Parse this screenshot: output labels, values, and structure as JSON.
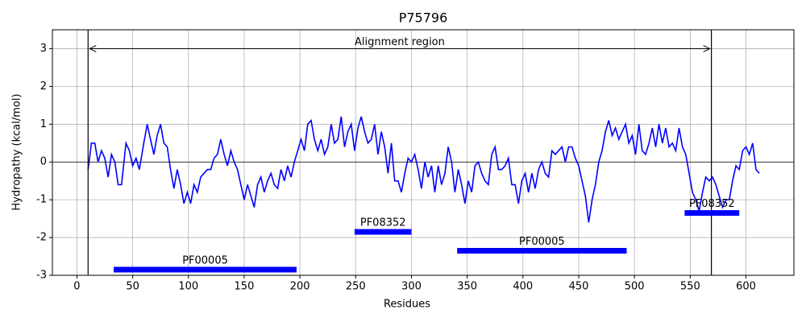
{
  "chart_data": {
    "type": "line",
    "title": "P75796",
    "xlabel": "Residues",
    "ylabel": "Hydropathy (kcal/mol)",
    "color": "#0000ff",
    "grid": true,
    "hline": 0,
    "xlim": [
      -22,
      643
    ],
    "ylim": [
      -3,
      3.5
    ],
    "xticks": [
      0,
      50,
      100,
      150,
      200,
      250,
      300,
      350,
      400,
      450,
      500,
      550,
      600
    ],
    "yticks": [
      -3,
      -2,
      -1,
      0,
      1,
      2,
      3
    ],
    "x": [
      10,
      13,
      16,
      19,
      22,
      25,
      28,
      31,
      34,
      37,
      40,
      44,
      47,
      50,
      53,
      56,
      60,
      63,
      66,
      69,
      72,
      75,
      78,
      81,
      84,
      87,
      90,
      93,
      96,
      99,
      102,
      105,
      108,
      111,
      114,
      117,
      120,
      123,
      126,
      129,
      132,
      135,
      138,
      141,
      144,
      147,
      150,
      153,
      156,
      159,
      162,
      165,
      168,
      171,
      174,
      177,
      180,
      183,
      186,
      189,
      192,
      195,
      198,
      201,
      204,
      207,
      210,
      213,
      216,
      219,
      222,
      225,
      228,
      231,
      234,
      237,
      240,
      243,
      246,
      249,
      252,
      255,
      258,
      261,
      264,
      267,
      270,
      273,
      276,
      279,
      282,
      285,
      288,
      291,
      294,
      297,
      300,
      303,
      306,
      309,
      312,
      315,
      318,
      321,
      324,
      327,
      330,
      333,
      336,
      339,
      342,
      345,
      348,
      351,
      354,
      357,
      360,
      363,
      366,
      369,
      372,
      375,
      378,
      381,
      384,
      387,
      390,
      393,
      396,
      399,
      402,
      405,
      408,
      411,
      414,
      417,
      420,
      423,
      426,
      429,
      432,
      435,
      438,
      441,
      444,
      447,
      450,
      453,
      456,
      459,
      462,
      465,
      468,
      471,
      474,
      477,
      480,
      483,
      486,
      489,
      492,
      495,
      498,
      501,
      504,
      507,
      510,
      513,
      516,
      519,
      522,
      525,
      528,
      531,
      534,
      537,
      540,
      543,
      546,
      549,
      552,
      555,
      558,
      561,
      564,
      567,
      570,
      573,
      576,
      579,
      582,
      585,
      588,
      591,
      594,
      597,
      600,
      603,
      606,
      609,
      612
    ],
    "values": [
      -0.2,
      0.5,
      0.5,
      0.0,
      0.3,
      0.1,
      -0.4,
      0.2,
      0.0,
      -0.6,
      -0.6,
      0.5,
      0.3,
      -0.1,
      0.1,
      -0.2,
      0.5,
      1.0,
      0.6,
      0.2,
      0.7,
      1.0,
      0.5,
      0.4,
      -0.2,
      -0.7,
      -0.2,
      -0.6,
      -1.1,
      -0.8,
      -1.1,
      -0.6,
      -0.8,
      -0.4,
      -0.3,
      -0.2,
      -0.2,
      0.1,
      0.2,
      0.6,
      0.2,
      -0.1,
      0.3,
      0.0,
      -0.2,
      -0.6,
      -1.0,
      -0.6,
      -0.9,
      -1.2,
      -0.6,
      -0.4,
      -0.8,
      -0.5,
      -0.3,
      -0.6,
      -0.7,
      -0.2,
      -0.5,
      -0.1,
      -0.4,
      0.0,
      0.3,
      0.6,
      0.3,
      1.0,
      1.1,
      0.6,
      0.3,
      0.6,
      0.2,
      0.4,
      1.0,
      0.5,
      0.6,
      1.2,
      0.4,
      0.8,
      1.0,
      0.3,
      0.9,
      1.2,
      0.8,
      0.5,
      0.6,
      1.0,
      0.2,
      0.8,
      0.4,
      -0.3,
      0.5,
      -0.5,
      -0.5,
      -0.8,
      -0.3,
      0.1,
      0.0,
      0.2,
      -0.2,
      -0.7,
      0.0,
      -0.4,
      -0.1,
      -0.8,
      -0.1,
      -0.6,
      -0.3,
      0.4,
      0.0,
      -0.8,
      -0.2,
      -0.6,
      -1.1,
      -0.5,
      -0.8,
      -0.1,
      0.0,
      -0.3,
      -0.5,
      -0.6,
      0.2,
      0.4,
      -0.2,
      -0.2,
      -0.1,
      0.1,
      -0.6,
      -0.6,
      -1.1,
      -0.5,
      -0.3,
      -0.8,
      -0.3,
      -0.7,
      -0.2,
      0.0,
      -0.3,
      -0.4,
      0.3,
      0.2,
      0.3,
      0.4,
      0.0,
      0.4,
      0.4,
      0.1,
      -0.1,
      -0.5,
      -0.9,
      -1.6,
      -1.0,
      -0.6,
      0.0,
      0.3,
      0.8,
      1.1,
      0.7,
      0.9,
      0.6,
      0.8,
      1.0,
      0.5,
      0.7,
      0.2,
      1.0,
      0.3,
      0.2,
      0.5,
      0.9,
      0.4,
      1.0,
      0.5,
      0.9,
      0.4,
      0.5,
      0.3,
      0.9,
      0.4,
      0.2,
      -0.3,
      -0.8,
      -1.0,
      -1.3,
      -0.8,
      -0.4,
      -0.5,
      -0.4,
      -0.6,
      -0.9,
      -1.2,
      -1.0,
      -1.0,
      -0.5,
      -0.1,
      -0.2,
      0.3,
      0.4,
      0.2,
      0.5,
      -0.2,
      -0.3
    ],
    "alignment_region": {
      "label": "Alignment region",
      "start": 10,
      "end": 569,
      "y": 3
    },
    "domains": [
      {
        "label": "PF00005",
        "start": 33,
        "end": 197,
        "y": -2.85
      },
      {
        "label": "PF08352",
        "start": 249,
        "end": 300,
        "y": -1.85
      },
      {
        "label": "PF00005",
        "start": 341,
        "end": 493,
        "y": -2.35
      },
      {
        "label": "PF08352",
        "start": 545,
        "end": 594,
        "y": -1.35
      }
    ]
  }
}
